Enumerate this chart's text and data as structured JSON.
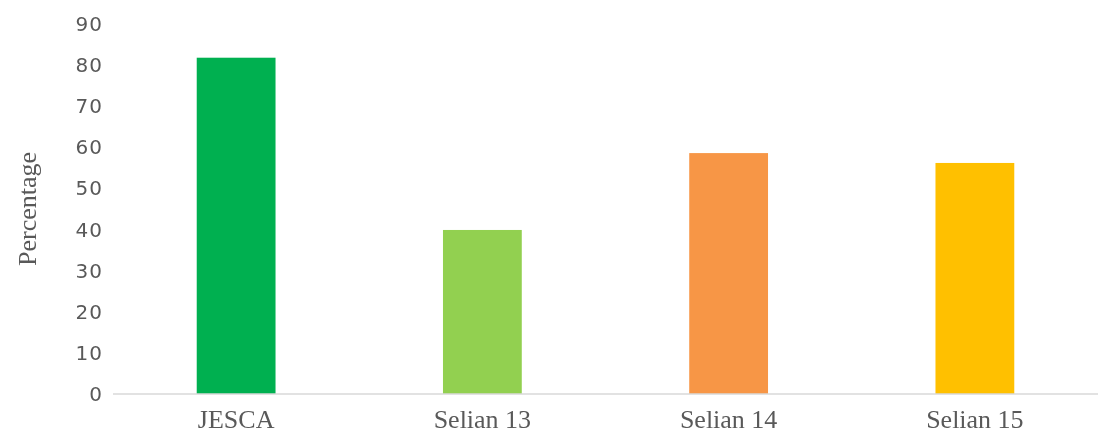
{
  "chart_data": {
    "type": "bar",
    "ylabel": "Percentage",
    "categories": [
      "JESCA",
      "Selian 13",
      "Selian 14",
      "Selian 15"
    ],
    "values": [
      81.8,
      39.9,
      58.6,
      56.2
    ],
    "colors": [
      "#00b050",
      "#92d050",
      "#f79646",
      "#ffc000"
    ],
    "ylim": [
      0,
      90
    ],
    "yticks": [
      0,
      10,
      20,
      30,
      40,
      50,
      60,
      70,
      80,
      90
    ],
    "grid": false
  }
}
